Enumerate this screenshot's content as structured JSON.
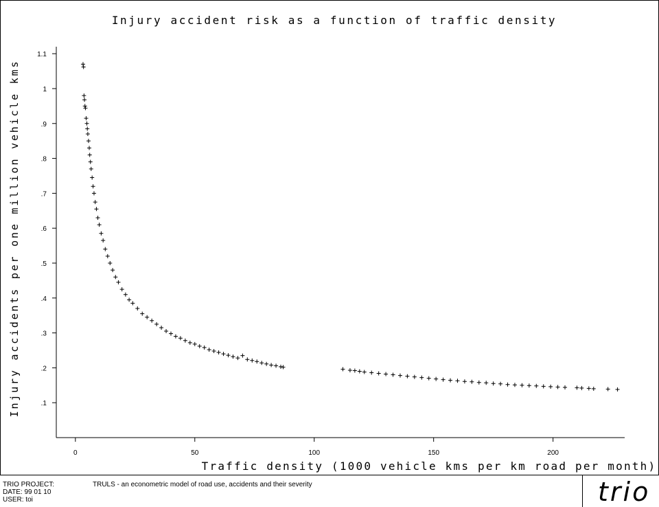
{
  "chart_data": {
    "type": "scatter",
    "title": "Injury accident risk as a function of traffic density",
    "xlabel": "Traffic density (1000 vehicle kms per km road per month)",
    "ylabel": "Injury accidents per one million vehicle kms",
    "xlim": [
      -8,
      230
    ],
    "ylim": [
      0,
      1.12
    ],
    "x_ticks": [
      0,
      50,
      100,
      150,
      200
    ],
    "x_tick_labels": [
      "0",
      "50",
      "100",
      "150",
      "200"
    ],
    "y_ticks": [
      0.1,
      0.2,
      0.3,
      0.4,
      0.5,
      0.6,
      0.7,
      0.8,
      0.9,
      1,
      1.1
    ],
    "y_tick_labels": [
      ".1",
      ".2",
      ".3",
      ".4",
      ".5",
      ".6",
      ".7",
      ".8",
      ".9",
      "1",
      "1.1"
    ],
    "grid": false,
    "marker": "plus",
    "series": [
      {
        "points": [
          [
            3.2,
            1.07
          ],
          [
            3.4,
            1.062
          ],
          [
            3.6,
            0.98
          ],
          [
            3.8,
            0.968
          ],
          [
            4.0,
            0.95
          ],
          [
            4.2,
            0.944
          ],
          [
            4.5,
            0.915
          ],
          [
            4.8,
            0.9
          ],
          [
            5.0,
            0.885
          ],
          [
            5.2,
            0.87
          ],
          [
            5.5,
            0.85
          ],
          [
            5.8,
            0.83
          ],
          [
            6.0,
            0.81
          ],
          [
            6.3,
            0.79
          ],
          [
            6.6,
            0.77
          ],
          [
            7.0,
            0.745
          ],
          [
            7.4,
            0.72
          ],
          [
            7.8,
            0.7
          ],
          [
            8.3,
            0.675
          ],
          [
            8.8,
            0.655
          ],
          [
            9.4,
            0.63
          ],
          [
            10,
            0.61
          ],
          [
            10.8,
            0.585
          ],
          [
            11.6,
            0.565
          ],
          [
            12.5,
            0.54
          ],
          [
            13.5,
            0.52
          ],
          [
            14.5,
            0.5
          ],
          [
            15.6,
            0.48
          ],
          [
            16.8,
            0.46
          ],
          [
            18,
            0.445
          ],
          [
            19.5,
            0.425
          ],
          [
            21,
            0.41
          ],
          [
            22.5,
            0.395
          ],
          [
            24,
            0.385
          ],
          [
            26,
            0.37
          ],
          [
            28,
            0.355
          ],
          [
            30,
            0.345
          ],
          [
            32,
            0.335
          ],
          [
            34,
            0.325
          ],
          [
            36,
            0.315
          ],
          [
            38,
            0.305
          ],
          [
            40,
            0.298
          ],
          [
            42,
            0.29
          ],
          [
            44,
            0.285
          ],
          [
            46,
            0.278
          ],
          [
            48,
            0.272
          ],
          [
            50,
            0.268
          ],
          [
            52,
            0.262
          ],
          [
            54,
            0.258
          ],
          [
            56,
            0.252
          ],
          [
            58,
            0.248
          ],
          [
            60,
            0.244
          ],
          [
            62,
            0.24
          ],
          [
            64,
            0.236
          ],
          [
            66,
            0.232
          ],
          [
            68,
            0.228
          ],
          [
            70,
            0.235
          ],
          [
            72,
            0.224
          ],
          [
            74,
            0.221
          ],
          [
            76,
            0.218
          ],
          [
            78,
            0.214
          ],
          [
            80,
            0.211
          ],
          [
            82,
            0.208
          ],
          [
            84,
            0.206
          ],
          [
            86,
            0.203
          ],
          [
            87,
            0.202
          ],
          [
            112,
            0.196
          ],
          [
            115,
            0.193
          ],
          [
            117,
            0.192
          ],
          [
            119,
            0.19
          ],
          [
            121,
            0.188
          ],
          [
            124,
            0.186
          ],
          [
            127,
            0.184
          ],
          [
            130,
            0.182
          ],
          [
            133,
            0.18
          ],
          [
            136,
            0.178
          ],
          [
            139,
            0.176
          ],
          [
            142,
            0.174
          ],
          [
            145,
            0.172
          ],
          [
            148,
            0.17
          ],
          [
            151,
            0.168
          ],
          [
            154,
            0.166
          ],
          [
            157,
            0.164
          ],
          [
            160,
            0.163
          ],
          [
            163,
            0.161
          ],
          [
            166,
            0.16
          ],
          [
            169,
            0.158
          ],
          [
            172,
            0.157
          ],
          [
            175,
            0.155
          ],
          [
            178,
            0.154
          ],
          [
            181,
            0.152
          ],
          [
            184,
            0.151
          ],
          [
            187,
            0.15
          ],
          [
            190,
            0.149
          ],
          [
            193,
            0.148
          ],
          [
            196,
            0.147
          ],
          [
            199,
            0.146
          ],
          [
            202,
            0.145
          ],
          [
            205,
            0.144
          ],
          [
            210,
            0.143
          ],
          [
            212,
            0.142
          ],
          [
            215,
            0.141
          ],
          [
            217,
            0.14
          ],
          [
            223,
            0.139
          ],
          [
            227,
            0.138
          ]
        ]
      }
    ]
  },
  "footer": {
    "project_label": "TRIO PROJECT:",
    "project_desc": "TRULS - an econometric model of road use, accidents and their severity",
    "date": "DATE: 99 01 10",
    "user": "USER: toi",
    "logo": "trio"
  }
}
